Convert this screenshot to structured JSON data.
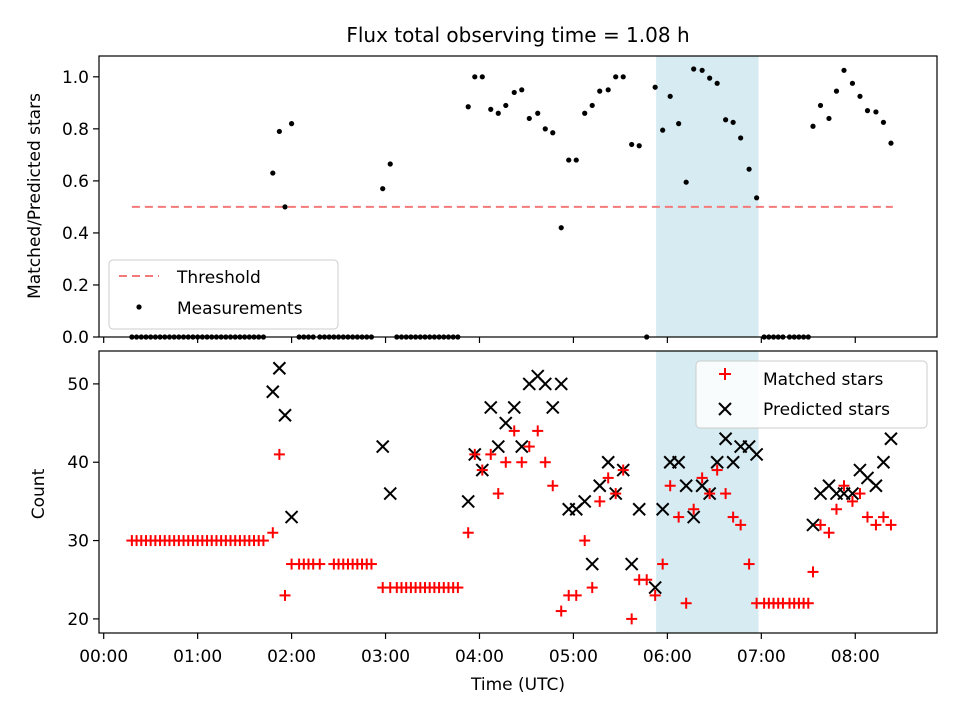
{
  "title": "Flux total observing time = 1.08 h",
  "colors": {
    "threshold": "#f47a7a",
    "measurements": "#000000",
    "matched": "#ff0000",
    "predicted": "#000000",
    "shade": "#add8e6"
  },
  "chart_data": [
    {
      "type": "scatter",
      "ylabel": "Matched/Predicted stars",
      "xlim": [
        -0.05,
        8.87
      ],
      "ylim": [
        0,
        1.08
      ],
      "yticks": [
        0,
        0.2,
        0.4,
        0.6,
        0.8,
        1.0
      ],
      "ytick_labels": [
        "0.0",
        "0.2",
        "0.4",
        "0.6",
        "0.8",
        "1.0"
      ],
      "shaded_span": [
        5.88,
        6.97
      ],
      "legend": {
        "placement": "lower-left",
        "threshold_label": "Threshold",
        "measurements_label": "Measurements"
      },
      "threshold": {
        "x": [
          0.3,
          8.4
        ],
        "y": 0.5
      },
      "measurements": [
        [
          0.3,
          0
        ],
        [
          0.35,
          0
        ],
        [
          0.4,
          0
        ],
        [
          0.45,
          0
        ],
        [
          0.5,
          0
        ],
        [
          0.55,
          0
        ],
        [
          0.6,
          0
        ],
        [
          0.65,
          0
        ],
        [
          0.7,
          0
        ],
        [
          0.75,
          0
        ],
        [
          0.8,
          0
        ],
        [
          0.85,
          0
        ],
        [
          0.9,
          0
        ],
        [
          0.95,
          0
        ],
        [
          1.0,
          0
        ],
        [
          1.05,
          0
        ],
        [
          1.1,
          0
        ],
        [
          1.15,
          0
        ],
        [
          1.2,
          0
        ],
        [
          1.25,
          0
        ],
        [
          1.3,
          0
        ],
        [
          1.35,
          0
        ],
        [
          1.4,
          0
        ],
        [
          1.45,
          0
        ],
        [
          1.5,
          0
        ],
        [
          1.55,
          0
        ],
        [
          1.6,
          0
        ],
        [
          1.65,
          0
        ],
        [
          1.7,
          0
        ],
        [
          1.8,
          0.63
        ],
        [
          1.87,
          0.79
        ],
        [
          1.93,
          0.5
        ],
        [
          2.0,
          0.82
        ],
        [
          2.08,
          0
        ],
        [
          2.13,
          0
        ],
        [
          2.18,
          0
        ],
        [
          2.23,
          0
        ],
        [
          2.3,
          0
        ],
        [
          2.35,
          0
        ],
        [
          2.4,
          0
        ],
        [
          2.45,
          0
        ],
        [
          2.5,
          0
        ],
        [
          2.55,
          0
        ],
        [
          2.6,
          0
        ],
        [
          2.65,
          0
        ],
        [
          2.7,
          0
        ],
        [
          2.75,
          0
        ],
        [
          2.8,
          0
        ],
        [
          2.85,
          0
        ],
        [
          2.97,
          0.57
        ],
        [
          3.05,
          0.665
        ],
        [
          3.12,
          0
        ],
        [
          3.17,
          0
        ],
        [
          3.22,
          0
        ],
        [
          3.27,
          0
        ],
        [
          3.32,
          0
        ],
        [
          3.37,
          0
        ],
        [
          3.42,
          0
        ],
        [
          3.47,
          0
        ],
        [
          3.52,
          0
        ],
        [
          3.57,
          0
        ],
        [
          3.62,
          0
        ],
        [
          3.67,
          0
        ],
        [
          3.72,
          0
        ],
        [
          3.77,
          0
        ],
        [
          3.88,
          0.885
        ],
        [
          3.95,
          1.0
        ],
        [
          4.03,
          1.0
        ],
        [
          4.12,
          0.875
        ],
        [
          4.2,
          0.86
        ],
        [
          4.28,
          0.89
        ],
        [
          4.37,
          0.94
        ],
        [
          4.45,
          0.95
        ],
        [
          4.53,
          0.84
        ],
        [
          4.62,
          0.86
        ],
        [
          4.7,
          0.8
        ],
        [
          4.78,
          0.785
        ],
        [
          4.87,
          0.42
        ],
        [
          4.95,
          0.68
        ],
        [
          5.03,
          0.68
        ],
        [
          5.12,
          0.86
        ],
        [
          5.2,
          0.89
        ],
        [
          5.28,
          0.945
        ],
        [
          5.37,
          0.95
        ],
        [
          5.45,
          1.0
        ],
        [
          5.53,
          1.0
        ],
        [
          5.62,
          0.74
        ],
        [
          5.7,
          0.735
        ],
        [
          5.78,
          0
        ],
        [
          5.87,
          0.96
        ],
        [
          5.95,
          0.795
        ],
        [
          6.03,
          0.925
        ],
        [
          6.12,
          0.82
        ],
        [
          6.2,
          0.595
        ],
        [
          6.28,
          1.03
        ],
        [
          6.37,
          1.025
        ],
        [
          6.45,
          0.995
        ],
        [
          6.53,
          0.975
        ],
        [
          6.62,
          0.835
        ],
        [
          6.7,
          0.825
        ],
        [
          6.78,
          0.765
        ],
        [
          6.87,
          0.645
        ],
        [
          6.95,
          0.535
        ],
        [
          7.03,
          0
        ],
        [
          7.08,
          0
        ],
        [
          7.13,
          0
        ],
        [
          7.18,
          0
        ],
        [
          7.23,
          0
        ],
        [
          7.3,
          0
        ],
        [
          7.35,
          0
        ],
        [
          7.4,
          0
        ],
        [
          7.45,
          0
        ],
        [
          7.5,
          0
        ],
        [
          7.55,
          0.81
        ],
        [
          7.63,
          0.89
        ],
        [
          7.72,
          0.84
        ],
        [
          7.8,
          0.945
        ],
        [
          7.88,
          1.025
        ],
        [
          7.97,
          0.975
        ],
        [
          8.05,
          0.925
        ],
        [
          8.13,
          0.87
        ],
        [
          8.22,
          0.865
        ],
        [
          8.3,
          0.825
        ],
        [
          8.38,
          0.745
        ]
      ]
    },
    {
      "type": "scatter",
      "ylabel": "Count",
      "xlabel": "Time (UTC)",
      "xlim": [
        -0.05,
        8.87
      ],
      "ylim": [
        18.2,
        54.2
      ],
      "yticks": [
        20,
        30,
        40,
        50
      ],
      "xticks": [
        0,
        1,
        2,
        3,
        4,
        5,
        6,
        7,
        8
      ],
      "xtick_labels": [
        "00:00",
        "01:00",
        "02:00",
        "03:00",
        "04:00",
        "05:00",
        "06:00",
        "07:00",
        "08:00"
      ],
      "shaded_span": [
        5.88,
        6.97
      ],
      "legend": {
        "placement": "upper-right",
        "matched_label": "Matched stars",
        "predicted_label": "Predicted stars"
      },
      "matched": [
        [
          0.3,
          30
        ],
        [
          0.35,
          30
        ],
        [
          0.4,
          30
        ],
        [
          0.45,
          30
        ],
        [
          0.5,
          30
        ],
        [
          0.55,
          30
        ],
        [
          0.6,
          30
        ],
        [
          0.65,
          30
        ],
        [
          0.7,
          30
        ],
        [
          0.75,
          30
        ],
        [
          0.8,
          30
        ],
        [
          0.85,
          30
        ],
        [
          0.9,
          30
        ],
        [
          0.95,
          30
        ],
        [
          1.0,
          30
        ],
        [
          1.05,
          30
        ],
        [
          1.1,
          30
        ],
        [
          1.15,
          30
        ],
        [
          1.2,
          30
        ],
        [
          1.25,
          30
        ],
        [
          1.3,
          30
        ],
        [
          1.35,
          30
        ],
        [
          1.4,
          30
        ],
        [
          1.45,
          30
        ],
        [
          1.5,
          30
        ],
        [
          1.55,
          30
        ],
        [
          1.6,
          30
        ],
        [
          1.65,
          30
        ],
        [
          1.7,
          30
        ],
        [
          1.8,
          31
        ],
        [
          1.87,
          41
        ],
        [
          1.93,
          23
        ],
        [
          2.0,
          27
        ],
        [
          2.08,
          27
        ],
        [
          2.13,
          27
        ],
        [
          2.18,
          27
        ],
        [
          2.23,
          27
        ],
        [
          2.3,
          27
        ],
        [
          2.45,
          27
        ],
        [
          2.5,
          27
        ],
        [
          2.55,
          27
        ],
        [
          2.6,
          27
        ],
        [
          2.65,
          27
        ],
        [
          2.7,
          27
        ],
        [
          2.75,
          27
        ],
        [
          2.8,
          27
        ],
        [
          2.85,
          27
        ],
        [
          2.97,
          24
        ],
        [
          3.05,
          24
        ],
        [
          3.12,
          24
        ],
        [
          3.17,
          24
        ],
        [
          3.22,
          24
        ],
        [
          3.27,
          24
        ],
        [
          3.32,
          24
        ],
        [
          3.37,
          24
        ],
        [
          3.42,
          24
        ],
        [
          3.47,
          24
        ],
        [
          3.52,
          24
        ],
        [
          3.57,
          24
        ],
        [
          3.62,
          24
        ],
        [
          3.67,
          24
        ],
        [
          3.72,
          24
        ],
        [
          3.77,
          24
        ],
        [
          3.88,
          31
        ],
        [
          3.95,
          41
        ],
        [
          4.03,
          39
        ],
        [
          4.12,
          41
        ],
        [
          4.2,
          36
        ],
        [
          4.28,
          40
        ],
        [
          4.37,
          44
        ],
        [
          4.45,
          40
        ],
        [
          4.53,
          42
        ],
        [
          4.62,
          44
        ],
        [
          4.7,
          40
        ],
        [
          4.78,
          37
        ],
        [
          4.87,
          21
        ],
        [
          4.95,
          23
        ],
        [
          5.03,
          23
        ],
        [
          5.12,
          30
        ],
        [
          5.2,
          24
        ],
        [
          5.28,
          35
        ],
        [
          5.37,
          38
        ],
        [
          5.45,
          36
        ],
        [
          5.53,
          39
        ],
        [
          5.62,
          20
        ],
        [
          5.7,
          25
        ],
        [
          5.78,
          25
        ],
        [
          5.87,
          23
        ],
        [
          5.95,
          27
        ],
        [
          6.03,
          37
        ],
        [
          6.12,
          33
        ],
        [
          6.2,
          22
        ],
        [
          6.28,
          34
        ],
        [
          6.37,
          38
        ],
        [
          6.45,
          36
        ],
        [
          6.53,
          39
        ],
        [
          6.62,
          36
        ],
        [
          6.7,
          33
        ],
        [
          6.78,
          32
        ],
        [
          6.87,
          27
        ],
        [
          6.95,
          22
        ],
        [
          7.03,
          22
        ],
        [
          7.08,
          22
        ],
        [
          7.13,
          22
        ],
        [
          7.18,
          22
        ],
        [
          7.23,
          22
        ],
        [
          7.3,
          22
        ],
        [
          7.35,
          22
        ],
        [
          7.4,
          22
        ],
        [
          7.45,
          22
        ],
        [
          7.5,
          22
        ],
        [
          7.55,
          26
        ],
        [
          7.63,
          32
        ],
        [
          7.72,
          31
        ],
        [
          7.8,
          34
        ],
        [
          7.88,
          37
        ],
        [
          7.97,
          35
        ],
        [
          8.05,
          36
        ],
        [
          8.13,
          33
        ],
        [
          8.22,
          32
        ],
        [
          8.3,
          33
        ],
        [
          8.38,
          32
        ]
      ],
      "predicted": [
        [
          1.8,
          49
        ],
        [
          1.87,
          52
        ],
        [
          1.93,
          46
        ],
        [
          2.0,
          33
        ],
        [
          2.97,
          42
        ],
        [
          3.05,
          36
        ],
        [
          3.88,
          35
        ],
        [
          3.95,
          41
        ],
        [
          4.03,
          39
        ],
        [
          4.12,
          47
        ],
        [
          4.2,
          42
        ],
        [
          4.28,
          45
        ],
        [
          4.37,
          47
        ],
        [
          4.45,
          42
        ],
        [
          4.53,
          50
        ],
        [
          4.62,
          51
        ],
        [
          4.7,
          50
        ],
        [
          4.78,
          47
        ],
        [
          4.87,
          50
        ],
        [
          4.95,
          34
        ],
        [
          5.03,
          34
        ],
        [
          5.12,
          35
        ],
        [
          5.2,
          27
        ],
        [
          5.28,
          37
        ],
        [
          5.37,
          40
        ],
        [
          5.45,
          36
        ],
        [
          5.53,
          39
        ],
        [
          5.62,
          27
        ],
        [
          5.7,
          34
        ],
        [
          5.87,
          24
        ],
        [
          5.95,
          34
        ],
        [
          6.03,
          40
        ],
        [
          6.12,
          40
        ],
        [
          6.2,
          37
        ],
        [
          6.28,
          33
        ],
        [
          6.37,
          37
        ],
        [
          6.45,
          36
        ],
        [
          6.53,
          40
        ],
        [
          6.62,
          43
        ],
        [
          6.7,
          40
        ],
        [
          6.78,
          42
        ],
        [
          6.87,
          42
        ],
        [
          6.95,
          41
        ],
        [
          7.55,
          32
        ],
        [
          7.63,
          36
        ],
        [
          7.72,
          37
        ],
        [
          7.8,
          36
        ],
        [
          7.88,
          36
        ],
        [
          7.97,
          36
        ],
        [
          8.05,
          39
        ],
        [
          8.13,
          38
        ],
        [
          8.22,
          37
        ],
        [
          8.3,
          40
        ],
        [
          8.38,
          43
        ]
      ]
    }
  ]
}
